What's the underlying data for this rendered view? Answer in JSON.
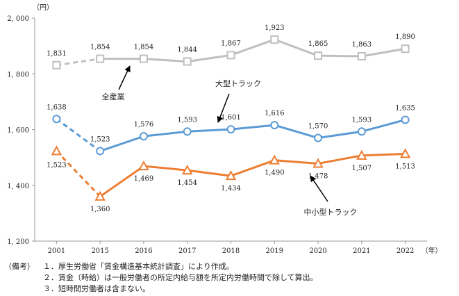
{
  "chart_data": {
    "type": "line",
    "ylabel": "（円）",
    "xunit": "（年）",
    "ylim": [
      1200,
      2000
    ],
    "yticks": [
      "1, 200",
      "1, 400",
      "1, 600",
      "1, 800",
      "2, 000"
    ],
    "ytick_values": [
      1200,
      1400,
      1600,
      1800,
      2000
    ],
    "categories": [
      "2001",
      "2015",
      "2016",
      "2017",
      "2018",
      "2019",
      "2020",
      "2021",
      "2022"
    ],
    "grid": false,
    "series": [
      {
        "name": "全産業",
        "color": "#bfbfbf",
        "marker": "square",
        "values": [
          1831,
          1854,
          1854,
          1844,
          1867,
          1923,
          1865,
          1863,
          1890
        ],
        "labels": [
          "1,831",
          "1,854",
          "1,854",
          "1,844",
          "1,867",
          "1,923",
          "1,865",
          "1,863",
          "1,890"
        ]
      },
      {
        "name": "大型トラック",
        "color": "#5b9bd5",
        "marker": "circle",
        "values": [
          1638,
          1523,
          1576,
          1593,
          1601,
          1616,
          1570,
          1593,
          1635
        ],
        "labels": [
          "1,638",
          "1,523",
          "1,576",
          "1,593",
          "1,601",
          "1,616",
          "1,570",
          "1,593",
          "1,635"
        ]
      },
      {
        "name": "中小型トラック",
        "color": "#ed7d31",
        "marker": "triangle",
        "values": [
          1523,
          1360,
          1469,
          1454,
          1434,
          1490,
          1478,
          1507,
          1513
        ],
        "labels": [
          "1,523",
          "1,360",
          "1,469",
          "1,454",
          "1,434",
          "1,490",
          "1,478",
          "1,507",
          "1,513"
        ]
      }
    ],
    "dashed_segment": "2001-2015"
  },
  "notes": {
    "prefix": "（備考）",
    "items": [
      "１．厚生労働省「賃金構造基本統計調査」により作成。",
      "２．賃金（時給）は一般労働者の所定内給与額を所定内労働時間で除して算出。",
      "３．短時間労働者は含まない。"
    ]
  }
}
